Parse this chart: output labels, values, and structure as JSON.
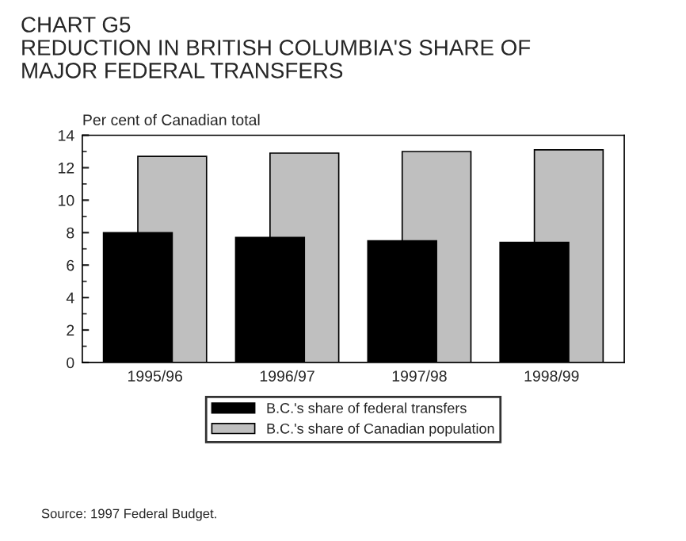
{
  "chart_data": {
    "type": "bar",
    "title": "CHART G5\nREDUCTION IN BRITISH COLUMBIA'S SHARE OF\nMAJOR FEDERAL TRANSFERS",
    "ylabel": "Per cent of Canadian total",
    "categories": [
      "1995/96",
      "1996/97",
      "1997/98",
      "1998/99"
    ],
    "series": [
      {
        "name": "B.C.'s share of federal transfers",
        "color": "#000000",
        "values": [
          8.0,
          7.7,
          7.5,
          7.4
        ]
      },
      {
        "name": "B.C.'s share of Canadian population",
        "color": "#bfbfbf",
        "values": [
          12.7,
          12.9,
          13.0,
          13.1
        ]
      }
    ],
    "ylim": [
      0,
      14
    ],
    "yticks": [
      0,
      2,
      4,
      6,
      8,
      10,
      12,
      14
    ],
    "grid": false,
    "legend": "bottom",
    "annotations": [
      "Source: 1997 Federal Budget."
    ]
  }
}
